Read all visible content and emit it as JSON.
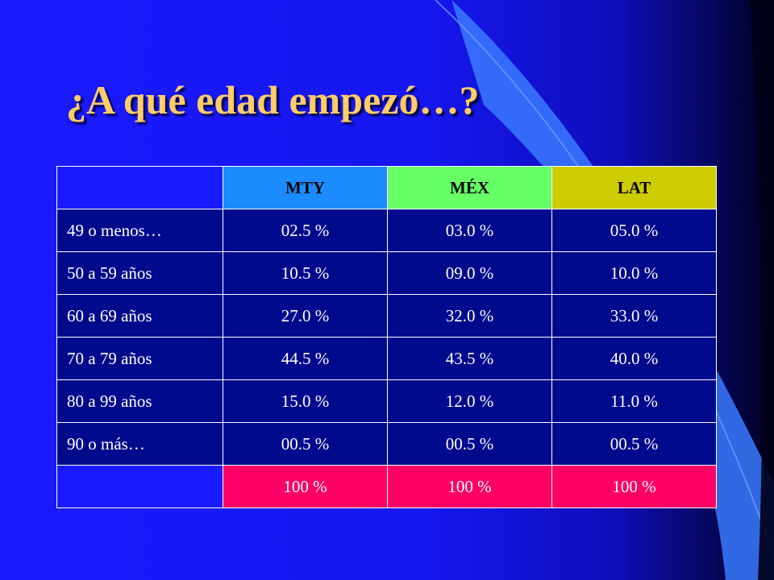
{
  "title": "¿A qué edad empezó…?",
  "table": {
    "headers": [
      "MTY",
      "MÉX",
      "LAT"
    ],
    "rows": [
      {
        "label": "49 o menos…",
        "values": [
          "02.5 %",
          "03.0 %",
          "05.0 %"
        ]
      },
      {
        "label": "50 a 59 años",
        "values": [
          "10.5 %",
          "09.0 %",
          "10.0 %"
        ]
      },
      {
        "label": "60 a 69 años",
        "values": [
          "27.0 %",
          "32.0 %",
          "33.0 %"
        ]
      },
      {
        "label": "70 a 79 años",
        "values": [
          "44.5 %",
          "43.5 %",
          "40.0 %"
        ]
      },
      {
        "label": "80 a 99 años",
        "values": [
          "15.0 %",
          "12.0 %",
          "11.0 %"
        ]
      },
      {
        "label": "90 o más…",
        "values": [
          "00.5 %",
          "00.5 %",
          "00.5 %"
        ]
      }
    ],
    "totals": [
      "100 %",
      "100 %",
      "100 %"
    ]
  },
  "colors": {
    "title": "#ffcc66",
    "header_mty": "#1a8cff",
    "header_mex": "#66ff66",
    "header_lat": "#cccc00",
    "cell_bg": "#000a8c",
    "total_bg": "#ff0066"
  }
}
